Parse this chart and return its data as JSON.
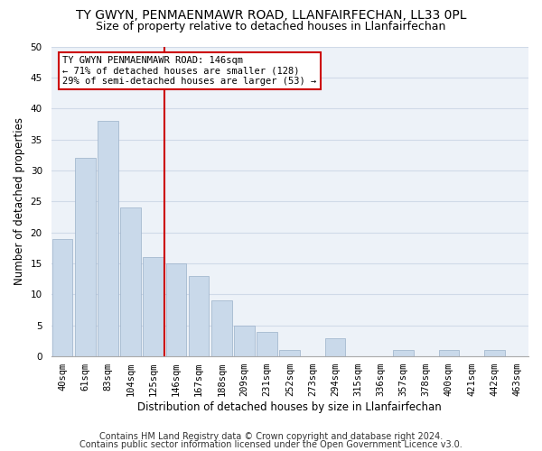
{
  "title": "TY GWYN, PENMAENMAWR ROAD, LLANFAIRFECHAN, LL33 0PL",
  "subtitle": "Size of property relative to detached houses in Llanfairfechan",
  "xlabel": "Distribution of detached houses by size in Llanfairfechan",
  "ylabel": "Number of detached properties",
  "categories": [
    "40sqm",
    "61sqm",
    "83sqm",
    "104sqm",
    "125sqm",
    "146sqm",
    "167sqm",
    "188sqm",
    "209sqm",
    "231sqm",
    "252sqm",
    "273sqm",
    "294sqm",
    "315sqm",
    "336sqm",
    "357sqm",
    "378sqm",
    "400sqm",
    "421sqm",
    "442sqm",
    "463sqm"
  ],
  "values": [
    19,
    32,
    38,
    24,
    16,
    15,
    13,
    9,
    5,
    4,
    1,
    0,
    3,
    0,
    0,
    1,
    0,
    1,
    0,
    1,
    0
  ],
  "bar_color": "#c9d9ea",
  "bar_edge_color": "#9ab0c8",
  "vline_color": "#cc0000",
  "ylim": [
    0,
    50
  ],
  "yticks": [
    0,
    5,
    10,
    15,
    20,
    25,
    30,
    35,
    40,
    45,
    50
  ],
  "annotation_title": "TY GWYN PENMAENMAWR ROAD: 146sqm",
  "annotation_line2": "← 71% of detached houses are smaller (128)",
  "annotation_line3": "29% of semi-detached houses are larger (53) →",
  "annotation_box_color": "#ffffff",
  "annotation_box_edge": "#cc0000",
  "footer1": "Contains HM Land Registry data © Crown copyright and database right 2024.",
  "footer2": "Contains public sector information licensed under the Open Government Licence v3.0.",
  "grid_color": "#d0dae8",
  "bg_color": "#edf2f8",
  "title_fontsize": 10,
  "subtitle_fontsize": 9,
  "axis_label_fontsize": 8.5,
  "tick_fontsize": 7.5,
  "footer_fontsize": 7
}
